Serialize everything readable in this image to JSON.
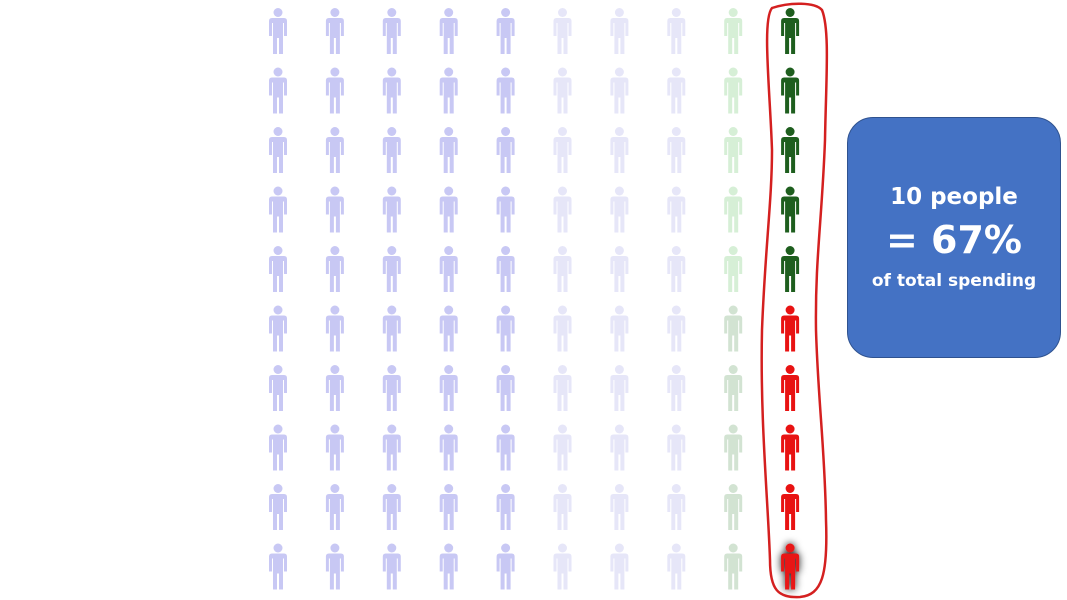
{
  "chart_data": {
    "type": "pictogram",
    "rows": 10,
    "columns": 10,
    "total_icons": 100,
    "icon": "person-icon",
    "column_groups": [
      {
        "columns": [
          0,
          1,
          2,
          3,
          4
        ],
        "rows_top_color": "#c8c8f4",
        "rows_bottom_color": "#c8c8f4"
      },
      {
        "columns": [
          5,
          6,
          7
        ],
        "rows_top_color": "#e6e6f8",
        "rows_bottom_color": "#e6e6f8"
      },
      {
        "columns": [
          8
        ],
        "rows_top_color": "#d6efd6",
        "rows_bottom_color": "#d2e3d2"
      },
      {
        "columns": [
          9
        ],
        "rows_top_color": "#1e5e1e",
        "rows_bottom_color": "#e81212",
        "highlighted": true
      }
    ],
    "highlight_outline_color": "#d42020"
  },
  "callout": {
    "line1": "10 people",
    "line2": "= 67%",
    "line3": "of total spending",
    "background": "#4472c4"
  }
}
